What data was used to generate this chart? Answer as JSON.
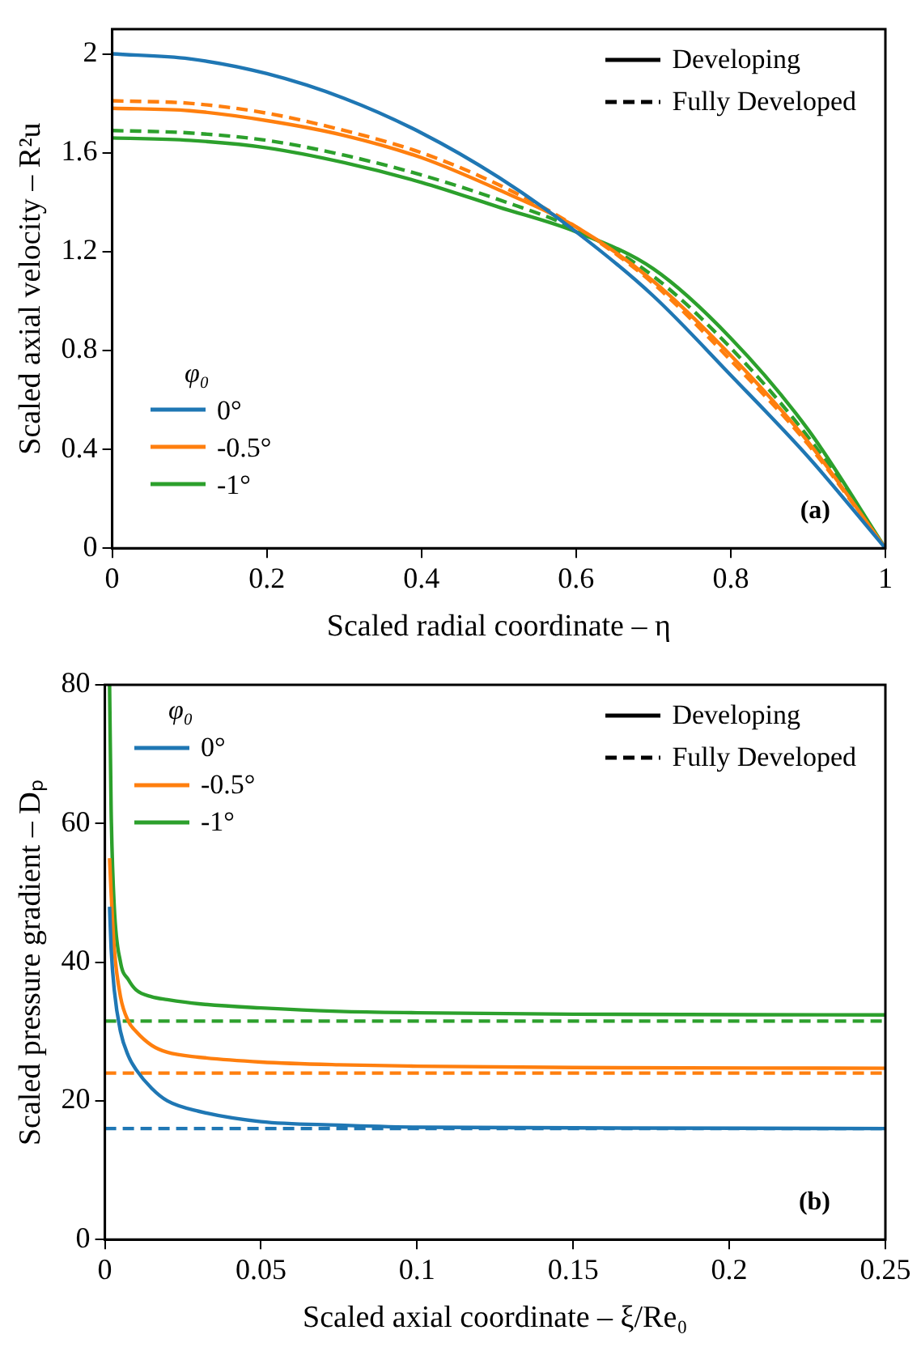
{
  "chart_data": [
    {
      "type": "line",
      "xlabel": "Scaled radial coordinate – η",
      "ylabel": "Scaled axial velocity – R²u",
      "legend_title": "φ₀",
      "legend": "left",
      "grid": false,
      "x": [
        0,
        0.1,
        0.2,
        0.3,
        0.4,
        0.5,
        0.6,
        0.7,
        0.8,
        0.9,
        1
      ],
      "xlim": [
        0,
        1
      ],
      "xticks": [
        0,
        0.2,
        0.4,
        0.6,
        0.8,
        1
      ],
      "ylim": [
        0,
        2.1
      ],
      "yticks": [
        0,
        0.4,
        0.8,
        1.2,
        1.6,
        2
      ],
      "annotations": [
        "Developing",
        "Fully Developed",
        "(a)"
      ],
      "series": [
        {
          "name": "0°",
          "color": "#1f77b4",
          "line_style": "solid",
          "values": [
            2,
            1.98,
            1.92,
            1.82,
            1.68,
            1.5,
            1.28,
            1.02,
            0.7,
            0.37,
            0
          ]
        },
        {
          "name": "-0.5°",
          "color": "#ff7f0e",
          "line_style": "solid",
          "values": [
            1.78,
            1.77,
            1.73,
            1.67,
            1.58,
            1.45,
            1.3,
            1.08,
            0.78,
            0.43,
            0
          ]
        },
        {
          "name": "-1°",
          "color": "#2ca02c",
          "line_style": "solid",
          "values": [
            1.66,
            1.65,
            1.62,
            1.56,
            1.48,
            1.38,
            1.28,
            1.13,
            0.85,
            0.48,
            0
          ]
        },
        {
          "color": "#ff7f0e",
          "line_style": "dashed",
          "values": [
            1.81,
            1.8,
            1.76,
            1.69,
            1.6,
            1.47,
            1.3,
            1.07,
            0.76,
            0.42,
            0
          ]
        },
        {
          "color": "#2ca02c",
          "line_style": "dashed",
          "values": [
            1.69,
            1.68,
            1.65,
            1.59,
            1.51,
            1.41,
            1.29,
            1.1,
            0.81,
            0.45,
            0
          ]
        }
      ]
    },
    {
      "type": "line",
      "xlabel": "Scaled axial coordinate – ξ/Re₀",
      "ylabel": "Scaled pressure gradient – Dₚ",
      "legend_title": "φ₀",
      "legend": "top left",
      "grid": false,
      "xlim": [
        0,
        0.25
      ],
      "xticks": [
        0,
        0.05,
        0.1,
        0.15,
        0.2,
        0.25
      ],
      "ylim": [
        0,
        80
      ],
      "yticks": [
        0,
        20,
        40,
        60,
        80
      ],
      "annotations": [
        "Developing",
        "Fully Developed",
        "(b)"
      ],
      "series": [
        {
          "name": "0°",
          "color": "#1f77b4",
          "line_style": "solid",
          "x": [
            0.0015,
            0.002,
            0.003,
            0.005,
            0.0075,
            0.01,
            0.015,
            0.02,
            0.03,
            0.05,
            0.075,
            0.1,
            0.15,
            0.25
          ],
          "values": [
            48,
            42,
            36,
            30,
            26.5,
            24.5,
            21.8,
            20,
            18.5,
            17,
            16.5,
            16.2,
            16.1,
            16
          ]
        },
        {
          "name": "-0.5°",
          "color": "#ff7f0e",
          "line_style": "solid",
          "x": [
            0.0015,
            0.002,
            0.003,
            0.005,
            0.0075,
            0.01,
            0.015,
            0.02,
            0.03,
            0.05,
            0.075,
            0.1,
            0.15,
            0.25
          ],
          "values": [
            55,
            50,
            42,
            35,
            31.5,
            30,
            28,
            27,
            26.3,
            25.6,
            25.2,
            25,
            24.8,
            24.7
          ]
        },
        {
          "name": "-1°",
          "color": "#2ca02c",
          "line_style": "solid",
          "x": [
            0.0015,
            0.002,
            0.003,
            0.005,
            0.0075,
            0.01,
            0.015,
            0.02,
            0.03,
            0.05,
            0.075,
            0.1,
            0.15,
            0.25
          ],
          "values": [
            80,
            62,
            48,
            40,
            37.5,
            36,
            35,
            34.6,
            34,
            33.4,
            32.9,
            32.7,
            32.5,
            32.4
          ]
        },
        {
          "color": "#1f77b4",
          "line_style": "dashed",
          "x": [
            0,
            0.25
          ],
          "values": [
            16,
            16
          ]
        },
        {
          "color": "#ff7f0e",
          "line_style": "dashed",
          "x": [
            0,
            0.25
          ],
          "values": [
            24,
            24
          ]
        },
        {
          "color": "#2ca02c",
          "line_style": "dashed",
          "x": [
            0,
            0.25
          ],
          "values": [
            31.5,
            31.5
          ]
        }
      ]
    }
  ]
}
